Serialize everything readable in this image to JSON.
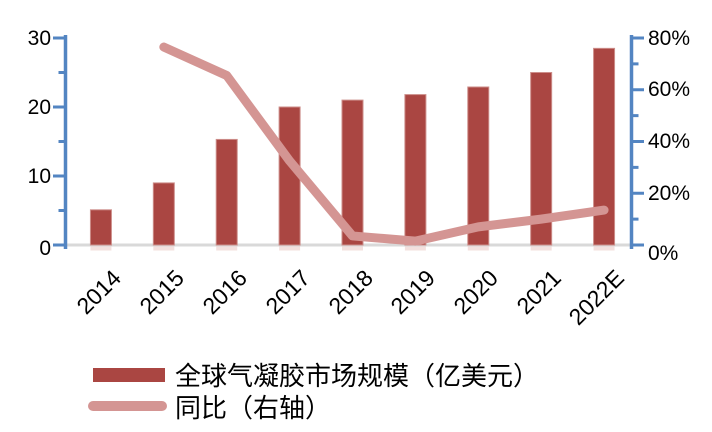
{
  "chart_data": {
    "type": "combo-bar-line",
    "title": "",
    "categories": [
      "2014",
      "2015",
      "2016",
      "2017",
      "2018",
      "2019",
      "2020",
      "2021",
      "2022E"
    ],
    "series": [
      {
        "name": "全球气凝胶市场规模（亿美元）",
        "type": "bar",
        "axis": "left",
        "unit": "亿美元",
        "values": [
          5.1,
          9.0,
          15.3,
          20.0,
          21.0,
          21.8,
          22.9,
          25.0,
          28.5
        ]
      },
      {
        "name": "同比（右轴）",
        "type": "line",
        "axis": "right",
        "unit": "%",
        "values": [
          null,
          76.5,
          65.5,
          32.5,
          3.5,
          1.5,
          7.0,
          10.0,
          13.5
        ]
      }
    ],
    "left_axis": {
      "min": 0,
      "max": 30,
      "tick_labels": [
        "30",
        "20",
        "10",
        "0"
      ],
      "major_ticks": [
        30,
        20,
        10,
        0
      ],
      "minor_ticks": [
        25,
        15,
        5
      ]
    },
    "right_axis": {
      "min": 0,
      "max": 80,
      "tick_labels": [
        "80%",
        "60%",
        "40%",
        "20%",
        "0%"
      ],
      "major_ticks": [
        80,
        60,
        40,
        20,
        0
      ],
      "minor_ticks": [
        70,
        50,
        30,
        10
      ]
    },
    "grid": false,
    "legend_position": "bottom",
    "colors": {
      "bar": "#AA4642",
      "bar_edge": "#CD8E8A",
      "bar_reflection": "#E9C6C3",
      "line": "#D49593",
      "axis": "#5385C2",
      "baseline": "#D9D9D9",
      "text": "#000000"
    },
    "legend": [
      {
        "label": "全球气凝胶市场规模（亿美元）",
        "swatch": "bar"
      },
      {
        "label": "同比（右轴）",
        "swatch": "line"
      }
    ]
  }
}
